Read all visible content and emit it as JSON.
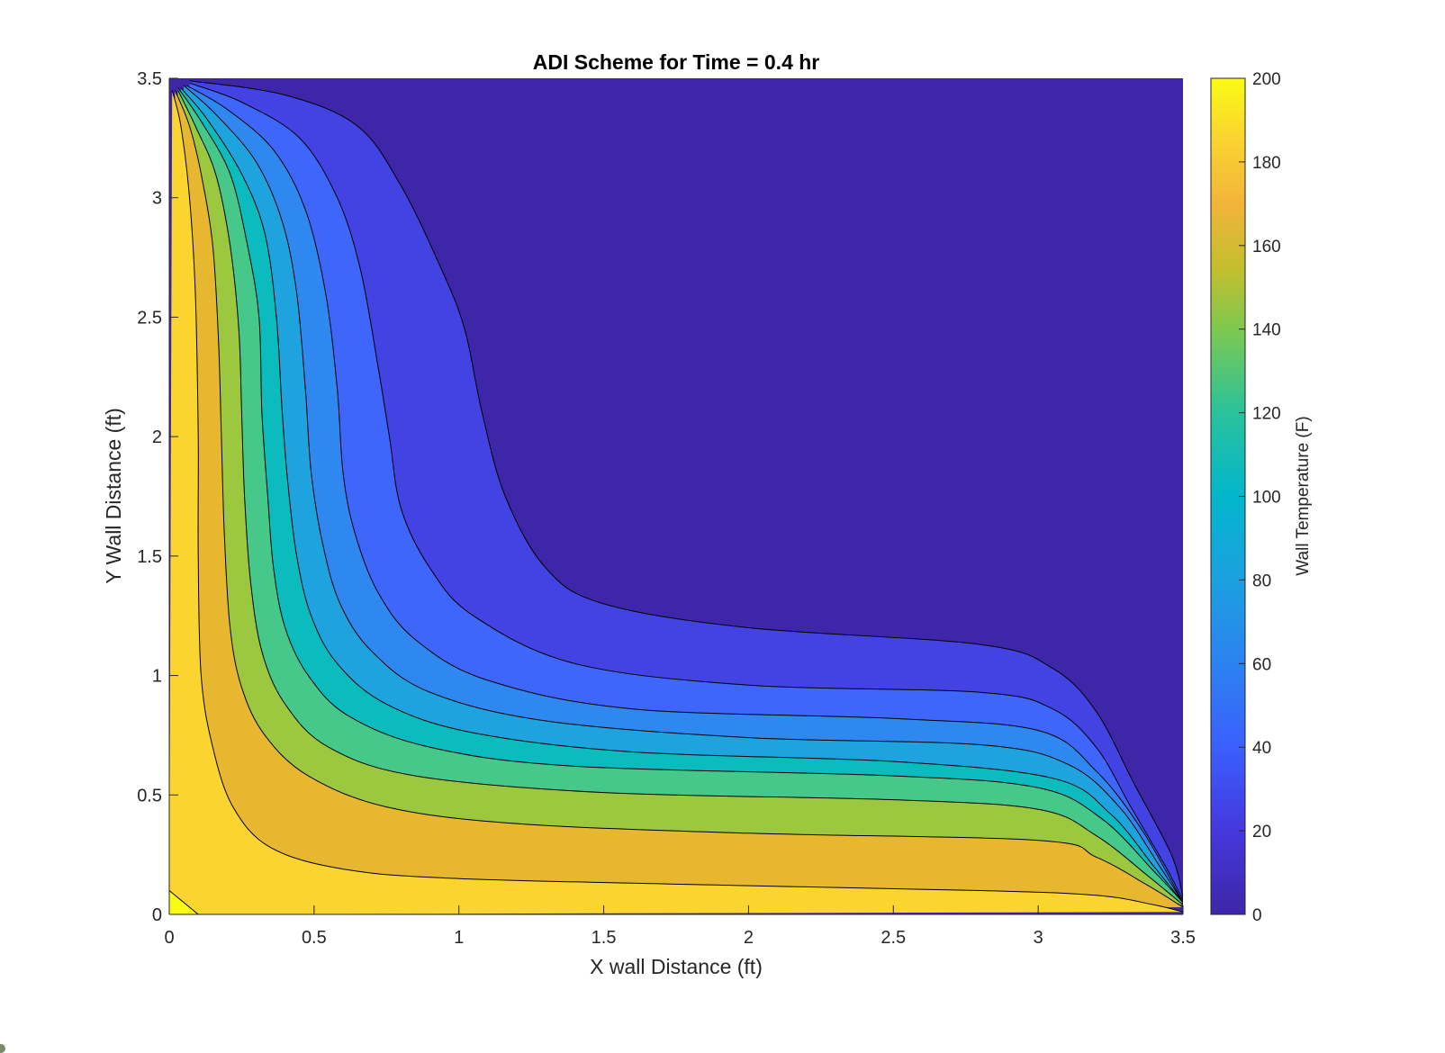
{
  "chart_data": {
    "type": "contourf",
    "title": "ADI Scheme for Time = 0.4 hr",
    "xlabel": "X wall Distance (ft)",
    "ylabel": "Y Wall Distance (ft)",
    "xlim": [
      0,
      3.5
    ],
    "ylim": [
      0,
      3.5
    ],
    "xticks": [
      "0",
      "0.5",
      "1",
      "1.5",
      "2",
      "2.5",
      "3",
      "3.5"
    ],
    "yticks": [
      "0",
      "0.5",
      "1",
      "1.5",
      "2",
      "2.5",
      "3",
      "3.5"
    ],
    "colorbar": {
      "label": "Wall Temperature (F)",
      "range": [
        0,
        200
      ],
      "ticks": [
        "0",
        "20",
        "40",
        "60",
        "80",
        "100",
        "120",
        "140",
        "160",
        "180",
        "200"
      ],
      "colormap": "parula"
    },
    "levels": [
      0,
      20,
      40,
      60,
      80,
      100,
      120,
      140,
      160,
      180,
      200
    ],
    "fill_colors": [
      "#3e26a8",
      "#4343e4",
      "#3f66fb",
      "#2f88ef",
      "#1fa3df",
      "#0bbbbd",
      "#45c889",
      "#9cc83f",
      "#e8b730",
      "#fad52f",
      "#f9fb15"
    ],
    "contours": [
      {
        "level": 20,
        "points": [
          [
            0.07,
            3.49
          ],
          [
            0.4,
            3.43
          ],
          [
            0.65,
            3.3
          ],
          [
            0.8,
            3.05
          ],
          [
            0.94,
            2.7
          ],
          [
            1.02,
            2.45
          ],
          [
            1.08,
            2.1
          ],
          [
            1.16,
            1.75
          ],
          [
            1.3,
            1.45
          ],
          [
            1.5,
            1.3
          ],
          [
            2.0,
            1.2
          ],
          [
            2.8,
            1.13
          ],
          [
            3.05,
            1.03
          ],
          [
            3.2,
            0.85
          ],
          [
            3.33,
            0.55
          ],
          [
            3.46,
            0.25
          ],
          [
            3.5,
            0.07
          ]
        ]
      },
      {
        "level": 40,
        "points": [
          [
            0.07,
            3.48
          ],
          [
            0.25,
            3.4
          ],
          [
            0.45,
            3.25
          ],
          [
            0.58,
            3.0
          ],
          [
            0.66,
            2.7
          ],
          [
            0.72,
            2.3
          ],
          [
            0.76,
            2.0
          ],
          [
            0.8,
            1.7
          ],
          [
            0.9,
            1.45
          ],
          [
            1.05,
            1.25
          ],
          [
            1.4,
            1.05
          ],
          [
            2.0,
            0.96
          ],
          [
            2.8,
            0.93
          ],
          [
            3.05,
            0.86
          ],
          [
            3.2,
            0.7
          ],
          [
            3.32,
            0.45
          ],
          [
            3.44,
            0.2
          ],
          [
            3.5,
            0.06
          ]
        ]
      },
      {
        "level": 60,
        "points": [
          [
            0.06,
            3.47
          ],
          [
            0.2,
            3.37
          ],
          [
            0.36,
            3.2
          ],
          [
            0.47,
            2.95
          ],
          [
            0.54,
            2.6
          ],
          [
            0.58,
            2.2
          ],
          [
            0.6,
            1.85
          ],
          [
            0.64,
            1.6
          ],
          [
            0.72,
            1.35
          ],
          [
            0.85,
            1.15
          ],
          [
            1.1,
            0.98
          ],
          [
            1.6,
            0.86
          ],
          [
            2.5,
            0.82
          ],
          [
            3.0,
            0.77
          ],
          [
            3.2,
            0.6
          ],
          [
            3.36,
            0.35
          ],
          [
            3.5,
            0.05
          ]
        ]
      },
      {
        "level": 80,
        "points": [
          [
            0.05,
            3.47
          ],
          [
            0.16,
            3.35
          ],
          [
            0.3,
            3.15
          ],
          [
            0.39,
            2.9
          ],
          [
            0.44,
            2.6
          ],
          [
            0.47,
            2.2
          ],
          [
            0.49,
            1.85
          ],
          [
            0.53,
            1.55
          ],
          [
            0.59,
            1.3
          ],
          [
            0.7,
            1.1
          ],
          [
            0.9,
            0.93
          ],
          [
            1.3,
            0.81
          ],
          [
            2.0,
            0.74
          ],
          [
            2.8,
            0.71
          ],
          [
            3.1,
            0.63
          ],
          [
            3.28,
            0.45
          ],
          [
            3.42,
            0.2
          ],
          [
            3.5,
            0.05
          ]
        ]
      },
      {
        "level": 100,
        "points": [
          [
            0.04,
            3.46
          ],
          [
            0.13,
            3.33
          ],
          [
            0.25,
            3.1
          ],
          [
            0.33,
            2.85
          ],
          [
            0.37,
            2.5
          ],
          [
            0.39,
            2.1
          ],
          [
            0.41,
            1.8
          ],
          [
            0.44,
            1.5
          ],
          [
            0.49,
            1.25
          ],
          [
            0.58,
            1.05
          ],
          [
            0.75,
            0.88
          ],
          [
            1.05,
            0.76
          ],
          [
            1.6,
            0.68
          ],
          [
            2.5,
            0.64
          ],
          [
            3.05,
            0.57
          ],
          [
            3.25,
            0.42
          ],
          [
            3.4,
            0.2
          ],
          [
            3.5,
            0.05
          ]
        ]
      },
      {
        "level": 120,
        "points": [
          [
            0.03,
            3.46
          ],
          [
            0.11,
            3.32
          ],
          [
            0.21,
            3.1
          ],
          [
            0.27,
            2.8
          ],
          [
            0.31,
            2.5
          ],
          [
            0.32,
            2.1
          ],
          [
            0.34,
            1.75
          ],
          [
            0.36,
            1.45
          ],
          [
            0.4,
            1.2
          ],
          [
            0.48,
            1.0
          ],
          [
            0.62,
            0.83
          ],
          [
            0.9,
            0.7
          ],
          [
            1.4,
            0.62
          ],
          [
            2.5,
            0.58
          ],
          [
            3.0,
            0.53
          ],
          [
            3.22,
            0.4
          ],
          [
            3.4,
            0.18
          ],
          [
            3.5,
            0.05
          ]
        ]
      },
      {
        "level": 140,
        "points": [
          [
            0.03,
            3.45
          ],
          [
            0.09,
            3.3
          ],
          [
            0.16,
            3.1
          ],
          [
            0.21,
            2.8
          ],
          [
            0.24,
            2.45
          ],
          [
            0.25,
            2.1
          ],
          [
            0.26,
            1.75
          ],
          [
            0.28,
            1.4
          ],
          [
            0.32,
            1.1
          ],
          [
            0.4,
            0.88
          ],
          [
            0.55,
            0.7
          ],
          [
            0.85,
            0.58
          ],
          [
            1.5,
            0.51
          ],
          [
            2.5,
            0.48
          ],
          [
            3.0,
            0.44
          ],
          [
            3.2,
            0.33
          ],
          [
            3.38,
            0.16
          ],
          [
            3.5,
            0.04
          ]
        ]
      },
      {
        "level": 160,
        "points": [
          [
            0.02,
            3.45
          ],
          [
            0.07,
            3.3
          ],
          [
            0.11,
            3.1
          ],
          [
            0.15,
            2.8
          ],
          [
            0.17,
            2.4
          ],
          [
            0.18,
            2.0
          ],
          [
            0.19,
            1.6
          ],
          [
            0.21,
            1.2
          ],
          [
            0.25,
            0.95
          ],
          [
            0.33,
            0.75
          ],
          [
            0.48,
            0.58
          ],
          [
            0.75,
            0.45
          ],
          [
            1.2,
            0.38
          ],
          [
            2.0,
            0.34
          ],
          [
            3.0,
            0.31
          ],
          [
            3.2,
            0.24
          ],
          [
            3.38,
            0.12
          ],
          [
            3.5,
            0.03
          ]
        ]
      },
      {
        "level": 180,
        "points": [
          [
            0.01,
            3.45
          ],
          [
            0.04,
            3.3
          ],
          [
            0.07,
            3.0
          ],
          [
            0.09,
            2.6
          ],
          [
            0.1,
            2.0
          ],
          [
            0.1,
            1.5
          ],
          [
            0.11,
            1.0
          ],
          [
            0.15,
            0.7
          ],
          [
            0.22,
            0.45
          ],
          [
            0.35,
            0.28
          ],
          [
            0.6,
            0.19
          ],
          [
            1.0,
            0.15
          ],
          [
            2.0,
            0.12
          ],
          [
            2.8,
            0.1
          ],
          [
            3.2,
            0.08
          ],
          [
            3.4,
            0.04
          ],
          [
            3.5,
            0.01
          ]
        ]
      },
      {
        "level": 200,
        "points": [
          [
            0,
            0.1
          ],
          [
            0.1,
            0
          ]
        ]
      }
    ]
  }
}
